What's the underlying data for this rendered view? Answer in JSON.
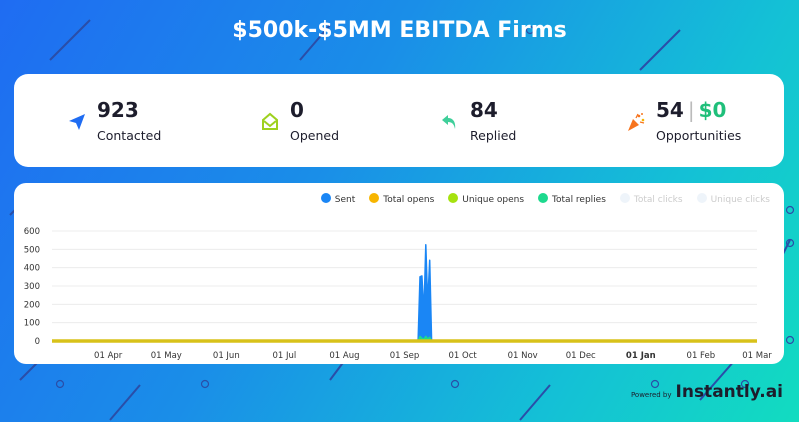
{
  "header": {
    "title": "$500k-$5MM EBITDA Firms"
  },
  "stats": [
    {
      "value": "923",
      "label": "Contacted",
      "icon": "paper-plane-icon",
      "color": "#1f6cf2"
    },
    {
      "value": "0",
      "label": "Opened",
      "icon": "open-envelope-icon",
      "color": "#9ed11e"
    },
    {
      "value": "84",
      "label": "Replied",
      "icon": "reply-arrow-icon",
      "color": "#3fcf9a"
    },
    {
      "value": "54",
      "value2": "$0",
      "separator": "|",
      "label": "Opportunities",
      "icon": "party-popper-icon",
      "color": "#f7741e"
    }
  ],
  "footer": {
    "powered": "Powered by",
    "brand": "Instantly.ai"
  },
  "chart_data": {
    "type": "area",
    "legend_position": "top-right",
    "series": [
      {
        "name": "Sent",
        "color": "#1a86f5",
        "enabled": true,
        "points": [
          [
            "2023-09-08",
            0
          ],
          [
            "2023-09-09",
            350
          ],
          [
            "2023-09-10",
            355
          ],
          [
            "2023-09-11",
            150
          ],
          [
            "2023-09-12",
            525
          ],
          [
            "2023-09-13",
            200
          ],
          [
            "2023-09-14",
            440
          ],
          [
            "2023-09-15",
            0
          ]
        ]
      },
      {
        "name": "Total opens",
        "color": "#f7b500",
        "enabled": true,
        "points": []
      },
      {
        "name": "Unique opens",
        "color": "#a6e20f",
        "enabled": true,
        "points": []
      },
      {
        "name": "Total replies",
        "color": "#1dd98e",
        "enabled": true,
        "points": [
          [
            "2023-09-08",
            0
          ],
          [
            "2023-09-09",
            25
          ],
          [
            "2023-09-10",
            15
          ],
          [
            "2023-09-11",
            10
          ],
          [
            "2023-09-12",
            25
          ],
          [
            "2023-09-13",
            10
          ],
          [
            "2023-09-14",
            20
          ],
          [
            "2023-09-15",
            0
          ],
          [
            "2023-09-18",
            4
          ],
          [
            "2023-10-03",
            2
          ]
        ]
      },
      {
        "name": "Total clicks",
        "color": "#eef4fa",
        "enabled": false,
        "points": []
      },
      {
        "name": "Unique clicks",
        "color": "#eef4fa",
        "enabled": false,
        "points": []
      }
    ],
    "xlim": [
      "2023-03-03",
      "2024-03-01"
    ],
    "ylim": [
      0,
      600
    ],
    "yticks": [
      0,
      100,
      200,
      300,
      400,
      500,
      600
    ],
    "xticks": [
      {
        "date": "2023-04-01",
        "label": "01 Apr"
      },
      {
        "date": "2023-05-01",
        "label": "01 May"
      },
      {
        "date": "2023-06-01",
        "label": "01 Jun"
      },
      {
        "date": "2023-07-01",
        "label": "01 Jul"
      },
      {
        "date": "2023-08-01",
        "label": "01 Aug"
      },
      {
        "date": "2023-09-01",
        "label": "01 Sep"
      },
      {
        "date": "2023-10-01",
        "label": "01 Oct"
      },
      {
        "date": "2023-11-01",
        "label": "01 Nov"
      },
      {
        "date": "2023-12-01",
        "label": "01 Dec"
      },
      {
        "date": "2024-01-01",
        "label": "01 Jan",
        "bold": true
      },
      {
        "date": "2024-02-01",
        "label": "01 Feb"
      },
      {
        "date": "2024-03-01",
        "label": "01 Mar"
      }
    ],
    "grid": true
  }
}
